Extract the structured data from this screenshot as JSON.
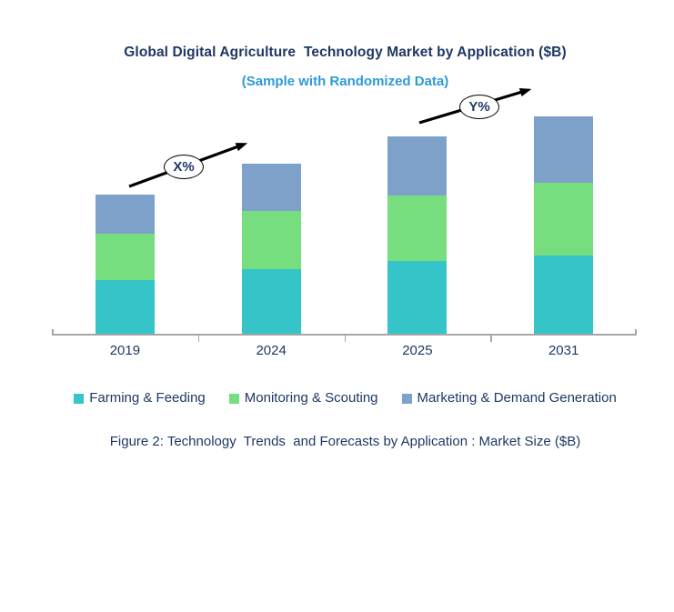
{
  "header": {
    "title": "Global Digital Agriculture  Technology Market by Application ($B)",
    "subtitle": "(Sample with Randomized Data)"
  },
  "chart_data": {
    "type": "bar",
    "stacked": true,
    "title": "Global Digital Agriculture  Technology Market by Application ($B)",
    "subtitle": "(Sample with Randomized Data)",
    "categories": [
      "2019",
      "2024",
      "2025",
      "2031"
    ],
    "series": [
      {
        "name": "Farming & Feeding",
        "color": "#35C4C7",
        "values": [
          6.0,
          7.2,
          8.1,
          8.7
        ]
      },
      {
        "name": "Monitoring & Scouting",
        "color": "#77DE80",
        "values": [
          5.1,
          6.4,
          7.2,
          8.0
        ]
      },
      {
        "name": "Marketing & Demand Generation",
        "color": "#7DA1C9",
        "values": [
          4.3,
          5.2,
          6.5,
          7.3
        ]
      }
    ],
    "totals": [
      15.4,
      18.8,
      21.8,
      24.0
    ],
    "xlabel": "",
    "ylabel": "",
    "y_axis_visible": false,
    "gridlines": false,
    "legend_position": "bottom",
    "annotations": [
      {
        "label": "X%",
        "type": "growth-arrow",
        "from_category": "2019",
        "to_category": "2024"
      },
      {
        "label": "Y%",
        "type": "growth-arrow",
        "from_category": "2025",
        "to_category": "2031"
      }
    ]
  },
  "caption": {
    "text": "Figure 2: Technology  Trends  and Forecasts by Application : Market Size ($B)"
  },
  "colors": {
    "title_text": "#1F3864",
    "subtitle_text": "#2E9AD6",
    "axis_line": "#A6A6A6",
    "arrow": "#000000"
  }
}
